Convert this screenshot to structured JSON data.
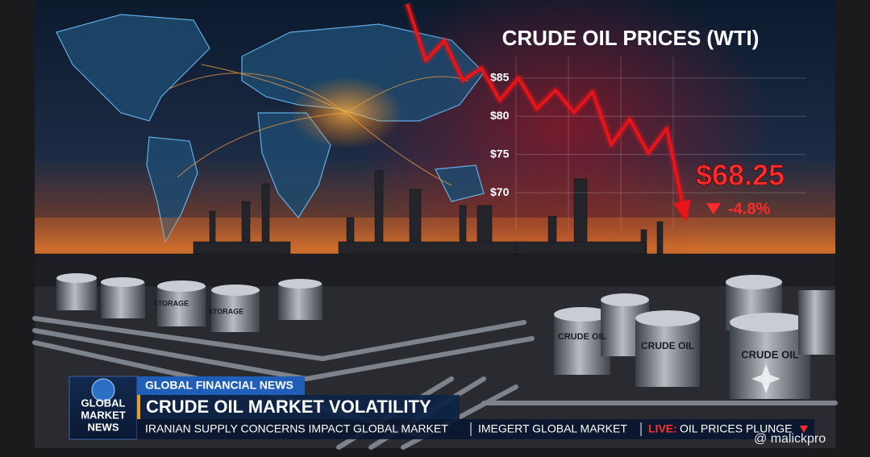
{
  "chart_data": {
    "type": "line",
    "title": "CRUDE OIL PRICES (WTI)",
    "values": [
      94.7,
      87.3,
      89.9,
      84.7,
      86.3,
      82.1,
      85,
      81,
      83.4,
      80.5,
      83.2,
      76.3,
      79.6,
      75.2,
      78.4,
      66.8
    ],
    "color": "#e8141a",
    "ylim": [
      66,
      95
    ],
    "yticks": [
      {
        "value": 70,
        "label": "$70"
      },
      {
        "value": 75,
        "label": "$75"
      },
      {
        "value": 80,
        "label": "$80"
      },
      {
        "value": 85,
        "label": "$85"
      }
    ],
    "grid": true
  },
  "current_price": "$68.25",
  "price_change": "-4.8%",
  "news_banner": {
    "logo": [
      "GLOBAL",
      "MARKET",
      "NEWS"
    ],
    "section": "GLOBAL FINANCIAL NEWS",
    "headline": "CRUDE OIL MARKET VOLATILITY",
    "ticker": [
      "IRANIAN SUPPLY CONCERNS IMPACT GLOBAL MARKET",
      "IMEGERT GLOBAL MARKET"
    ],
    "live_tag": "LIVE:",
    "live_text": "OIL PRICES PLUNGE"
  },
  "scene": {
    "tank_labels": [
      "CRUDE OIL",
      "CRUDE OIL",
      "CRUDE OIL",
      "STORAGE",
      "STORAGE"
    ]
  },
  "watermark": "@ malickpro"
}
